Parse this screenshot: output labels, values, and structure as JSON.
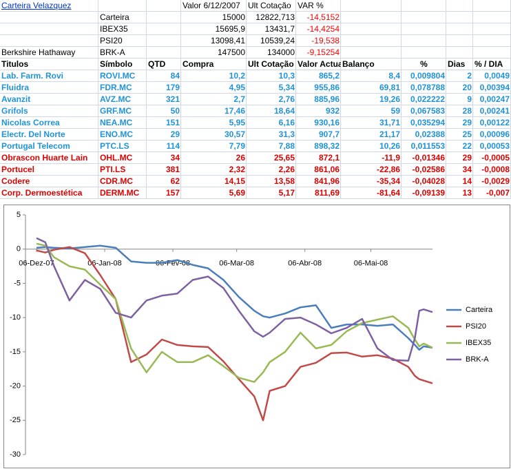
{
  "summary": {
    "title": "Carteira Velazquez",
    "columns": [
      "Valor 6/12/2007",
      "Ult Cotação",
      "VAR %"
    ],
    "rows": [
      {
        "symbol": "Carteira",
        "values": [
          "15000",
          "12822,713",
          "-14,5152"
        ]
      },
      {
        "symbol": "IBEX35",
        "values": [
          "15695,9",
          "13431,7",
          "-14,4254"
        ]
      },
      {
        "symbol": "PSI20",
        "values": [
          "13098,41",
          "10539,24",
          "-19,538"
        ]
      },
      {
        "company": "Berkshire Hathaway",
        "symbol": "BRK-A",
        "values": [
          "147500",
          "134000",
          "-9,15254"
        ]
      }
    ]
  },
  "stocks": {
    "columns": [
      "Titulos",
      "Símbolo",
      "QTD",
      "Compra",
      "Ult Cotação",
      "Valor Actual",
      "Balanço",
      "%",
      "Dias",
      "% / DIA"
    ],
    "rows": [
      [
        "Lab. Farm. Rovi",
        "ROVI.MC",
        "84",
        "10,2",
        "10,3",
        "865,2",
        "8,4",
        "0,009804",
        "2",
        "0,0049"
      ],
      [
        "Fluidra",
        "FDR.MC",
        "179",
        "4,95",
        "5,34",
        "955,86",
        "69,81",
        "0,078788",
        "20",
        "0,00394"
      ],
      [
        "Avanzit",
        "AVZ.MC",
        "321",
        "2,7",
        "2,76",
        "885,96",
        "19,26",
        "0,022222",
        "9",
        "0,00247"
      ],
      [
        "Grifols",
        "GRF.MC",
        "50",
        "17,46",
        "18,64",
        "932",
        "59",
        "0,067583",
        "28",
        "0,00241"
      ],
      [
        "Nicolas Correa",
        "NEA.MC",
        "151",
        "5,95",
        "6,16",
        "930,16",
        "31,71",
        "0,035294",
        "29",
        "0,00122"
      ],
      [
        "Electr. Del Norte",
        "ENO.MC",
        "29",
        "30,57",
        "31,3",
        "907,7",
        "21,17",
        "0,02388",
        "25",
        "0,00096"
      ],
      [
        "Portugal Telecom",
        "PTC.LS",
        "114",
        "7,79",
        "7,88",
        "898,32",
        "10,26",
        "0,011553",
        "22",
        "0,00053"
      ],
      [
        "Obrascon Huarte Lain",
        "OHL.MC",
        "34",
        "26",
        "25,65",
        "872,1",
        "-11,9",
        "-0,01346",
        "29",
        "-0,0005"
      ],
      [
        "Portucel",
        "PTI.LS",
        "381",
        "2,32",
        "2,26",
        "861,06",
        "-22,86",
        "-0,02586",
        "34",
        "-0,0008"
      ],
      [
        "Codere",
        "CDR.MC",
        "62",
        "14,15",
        "13,58",
        "841,96",
        "-35,34",
        "-0,04028",
        "14",
        "-0,0029"
      ],
      [
        "Corp. Dermoestética",
        "DERM.MC",
        "157",
        "5,69",
        "5,17",
        "811,69",
        "-81,64",
        "-0,09139",
        "13",
        "-0,007"
      ]
    ]
  },
  "chart_data": {
    "type": "line",
    "x": [
      "2007-12-06",
      "2007-12-10",
      "2007-12-14",
      "2007-12-21",
      "2007-12-28",
      "2008-01-04",
      "2008-01-11",
      "2008-01-18",
      "2008-01-25",
      "2008-02-01",
      "2008-02-08",
      "2008-02-15",
      "2008-02-22",
      "2008-02-29",
      "2008-03-07",
      "2008-03-14",
      "2008-03-18",
      "2008-03-21",
      "2008-03-28",
      "2008-04-04",
      "2008-04-11",
      "2008-04-18",
      "2008-04-25",
      "2008-05-02",
      "2008-05-09",
      "2008-05-16",
      "2008-05-23",
      "2008-05-26",
      "2008-05-28",
      "2008-05-30",
      "2008-06-03"
    ],
    "series": [
      {
        "name": "Carteira",
        "color": "#4a7ebb",
        "values": [
          0.2,
          0.3,
          0.2,
          0.1,
          0.3,
          0.5,
          0.2,
          -1.8,
          -2.0,
          -2.0,
          -1.6,
          -2.3,
          -2.8,
          -4.5,
          -7.0,
          -9.0,
          -9.8,
          -10.0,
          -9.4,
          -8.5,
          -8.2,
          -11.5,
          -11.0,
          -11.0,
          -11.2,
          -11.0,
          -13.0,
          -14.0,
          -14.7,
          -14.2,
          -14.4
        ]
      },
      {
        "name": "PSI20",
        "color": "#be4b48",
        "values": [
          -0.2,
          -0.5,
          -0.1,
          0.3,
          -0.6,
          -3.8,
          -7.3,
          -16.5,
          -15.4,
          -13.2,
          -14.0,
          -14.2,
          -14.3,
          -16.4,
          -19.0,
          -21.5,
          -25.0,
          -20.7,
          -20.0,
          -17.2,
          -16.6,
          -15.2,
          -15.1,
          -15.7,
          -15.5,
          -16.0,
          -17.2,
          -18.5,
          -19.0,
          -19.2,
          -19.6
        ]
      },
      {
        "name": "IBEX35",
        "color": "#98b954",
        "values": [
          0.8,
          0.5,
          -1.2,
          -2.5,
          -3.0,
          -5.2,
          -7.3,
          -14.5,
          -18.0,
          -15.0,
          -16.5,
          -16.5,
          -15.5,
          -17.1,
          -18.8,
          -19.4,
          -18.0,
          -16.5,
          -15.0,
          -12.2,
          -14.5,
          -14.0,
          -12.0,
          -10.8,
          -10.3,
          -9.8,
          -11.5,
          -13.2,
          -14.2,
          -13.8,
          -14.4
        ]
      },
      {
        "name": "BRK-A",
        "color": "#7d60a0",
        "values": [
          1.6,
          1.0,
          -2.5,
          -7.5,
          -4.5,
          -5.8,
          -9.3,
          -10.0,
          -7.5,
          -6.8,
          -6.5,
          -4.5,
          -4.0,
          -5.7,
          -9.0,
          -12.0,
          -12.8,
          -12.2,
          -10.2,
          -10.0,
          -11.0,
          -12.3,
          -11.5,
          -10.2,
          -14.5,
          -16.2,
          -16.3,
          -13.0,
          -9.0,
          -8.8,
          -9.2
        ]
      }
    ],
    "xlim": [
      "2007-12-01",
      "2008-06-03"
    ],
    "xticks": [
      {
        "value": "2007-12-06",
        "label": "06-Dez-07"
      },
      {
        "value": "2008-01-06",
        "label": "06-Jan-08"
      },
      {
        "value": "2008-02-06",
        "label": "06-Fev-08"
      },
      {
        "value": "2008-03-06",
        "label": "06-Mar-08"
      },
      {
        "value": "2008-04-06",
        "label": "06-Abr-08"
      },
      {
        "value": "2008-05-06",
        "label": "06-Mai-08"
      }
    ],
    "ylim": [
      -30,
      5
    ],
    "yticks": [
      5,
      0,
      -5,
      -10,
      -15,
      -20,
      -25,
      -30
    ],
    "legend": "right"
  }
}
